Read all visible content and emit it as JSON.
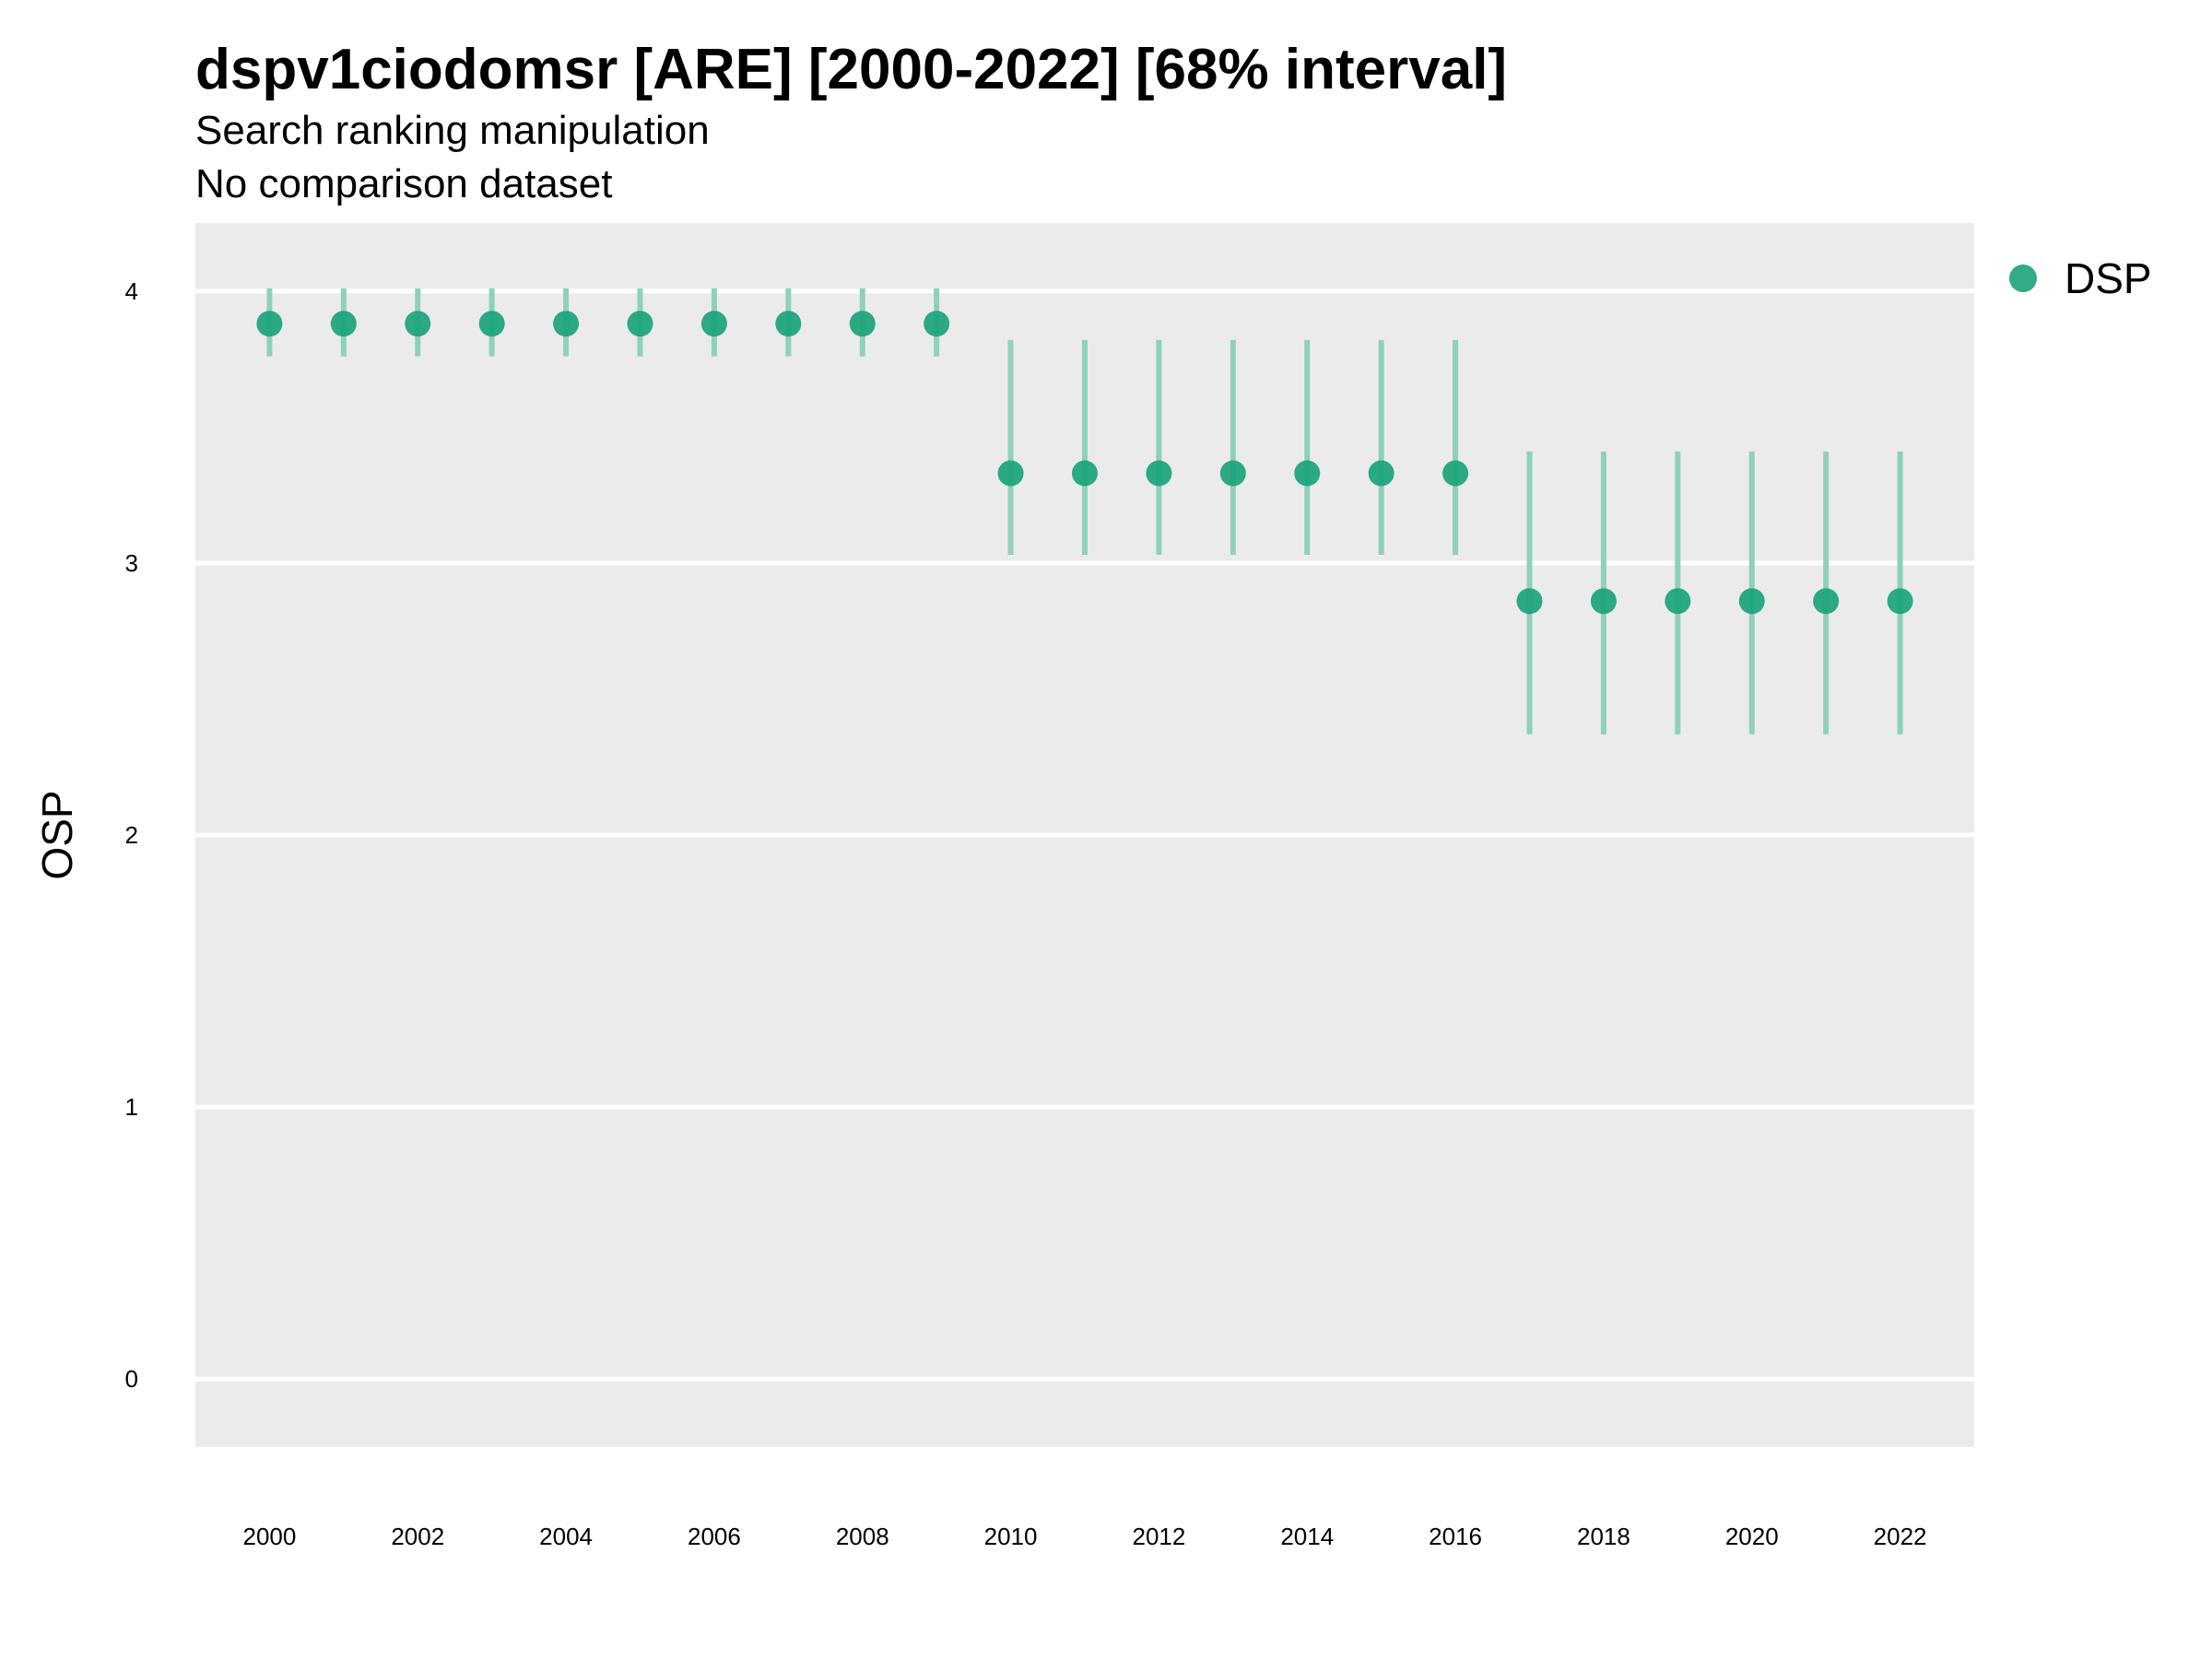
{
  "chart_data": {
    "type": "scatter",
    "title": "dspv1ciodomsr [ARE] [2000-2022] [68% interval]",
    "subtitle": "Search ranking manipulation",
    "caption_line": "No comparison dataset",
    "xlabel": "",
    "ylabel": "OSP",
    "x_ticks": [
      "2000",
      "2002",
      "2004",
      "2006",
      "2008",
      "2010",
      "2012",
      "2014",
      "2016",
      "2018",
      "2020",
      "2022"
    ],
    "y_ticks": [
      "0",
      "1",
      "2",
      "3",
      "4"
    ],
    "xlim": [
      1999,
      2023
    ],
    "ylim": [
      -0.25,
      4.25
    ],
    "grid": true,
    "legend_position": "top-right",
    "colors": {
      "point": "#1aa37a",
      "interval": "#8fd0bc",
      "panel_bg": "#ebebeb",
      "grid": "#ffffff"
    },
    "series": [
      {
        "name": "DSP",
        "x": [
          2000,
          2001,
          2002,
          2003,
          2004,
          2005,
          2006,
          2007,
          2008,
          2009,
          2010,
          2011,
          2012,
          2013,
          2014,
          2015,
          2016,
          2017,
          2018,
          2019,
          2020,
          2021,
          2022
        ],
        "y": [
          3.88,
          3.88,
          3.88,
          3.88,
          3.88,
          3.88,
          3.88,
          3.88,
          3.88,
          3.88,
          3.33,
          3.33,
          3.33,
          3.33,
          3.33,
          3.33,
          3.33,
          2.86,
          2.86,
          2.86,
          2.86,
          2.86,
          2.86
        ],
        "lower": [
          3.76,
          3.76,
          3.76,
          3.76,
          3.76,
          3.76,
          3.76,
          3.76,
          3.76,
          3.76,
          3.03,
          3.03,
          3.03,
          3.03,
          3.03,
          3.03,
          3.03,
          2.37,
          2.37,
          2.37,
          2.37,
          2.37,
          2.37
        ],
        "upper": [
          4.01,
          4.01,
          4.01,
          4.01,
          4.01,
          4.01,
          4.01,
          4.01,
          4.01,
          4.01,
          3.82,
          3.82,
          3.82,
          3.82,
          3.82,
          3.82,
          3.82,
          3.41,
          3.41,
          3.41,
          3.41,
          3.41,
          3.41
        ]
      }
    ]
  }
}
